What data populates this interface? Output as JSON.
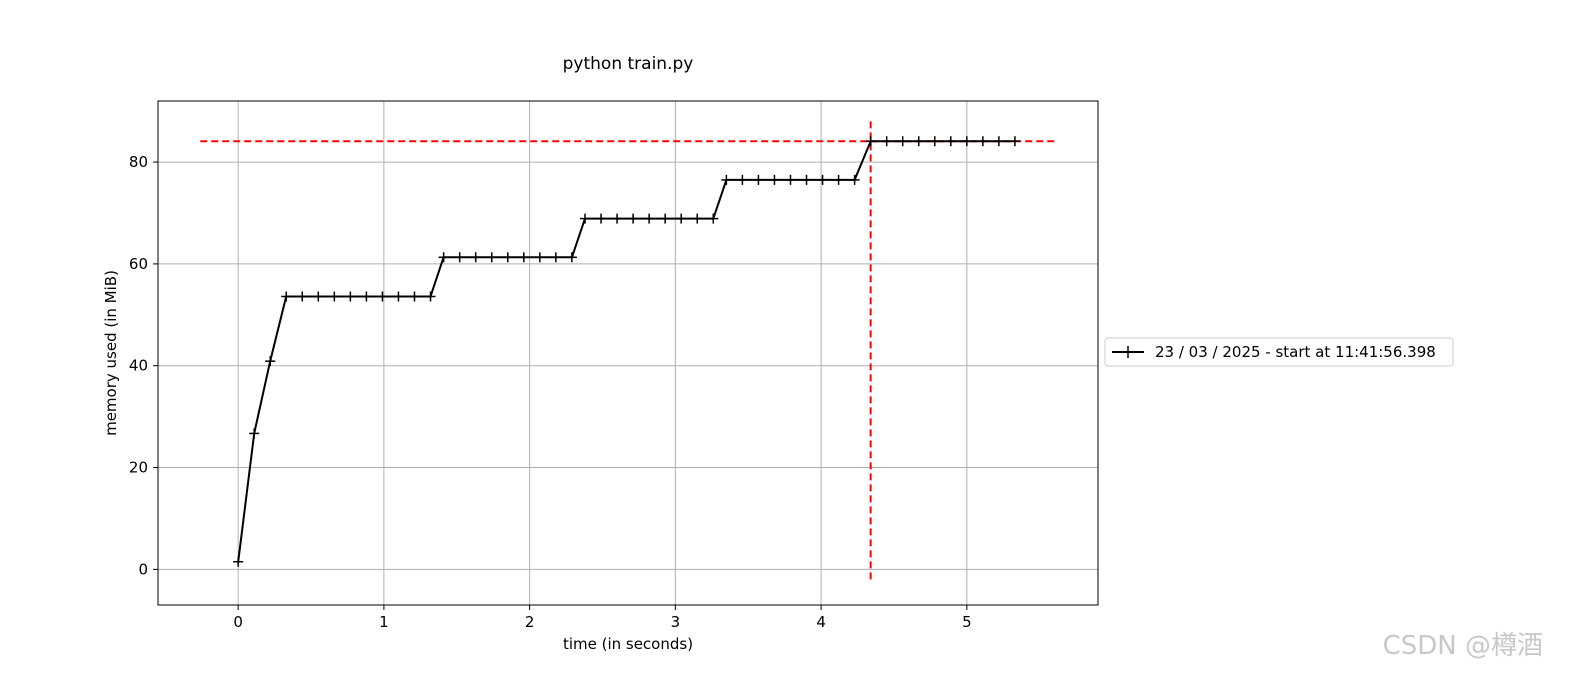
{
  "chart_data": {
    "type": "line",
    "title": "python train.py",
    "xlabel": "time (in seconds)",
    "ylabel": "memory used (in MiB)",
    "xlim": [
      -0.55,
      5.9
    ],
    "ylim": [
      -7,
      92
    ],
    "xticks": [
      0,
      1,
      2,
      3,
      4,
      5
    ],
    "yticks": [
      0,
      20,
      40,
      60,
      80
    ],
    "grid": true,
    "legend_position": "right",
    "series": [
      {
        "name": "23 / 03 / 2025 - start at 11:41:56.398",
        "color": "#000000",
        "marker": "plus",
        "x": [
          0.0,
          0.11,
          0.22,
          0.33,
          0.44,
          0.55,
          0.66,
          0.77,
          0.88,
          0.99,
          1.1,
          1.21,
          1.32,
          1.41,
          1.52,
          1.63,
          1.74,
          1.85,
          1.96,
          2.07,
          2.18,
          2.29,
          2.38,
          2.49,
          2.6,
          2.71,
          2.82,
          2.93,
          3.04,
          3.15,
          3.26,
          3.35,
          3.46,
          3.57,
          3.68,
          3.79,
          3.9,
          4.01,
          4.12,
          4.23,
          4.34,
          4.45,
          4.56,
          4.67,
          4.78,
          4.89,
          5.0,
          5.11,
          5.22,
          5.33
        ],
        "y": [
          1.5,
          26.7,
          40.9,
          53.6,
          53.6,
          53.6,
          53.6,
          53.6,
          53.6,
          53.6,
          53.6,
          53.6,
          53.6,
          61.3,
          61.3,
          61.3,
          61.3,
          61.3,
          61.3,
          61.3,
          61.3,
          61.3,
          68.9,
          68.9,
          68.9,
          68.9,
          68.9,
          68.9,
          68.9,
          68.9,
          68.9,
          76.5,
          76.5,
          76.5,
          76.5,
          76.5,
          76.5,
          76.5,
          76.5,
          76.5,
          84.1,
          84.1,
          84.1,
          84.1,
          84.1,
          84.1,
          84.1,
          84.1,
          84.1,
          84.1
        ]
      }
    ],
    "peak_markers": {
      "color": "#ff0000",
      "hline": {
        "y": 84.1,
        "x": [
          -0.26,
          5.6
        ]
      },
      "vline": {
        "x": 4.34,
        "y": [
          -2,
          88
        ]
      }
    }
  },
  "watermark": "CSDN @樽酒"
}
